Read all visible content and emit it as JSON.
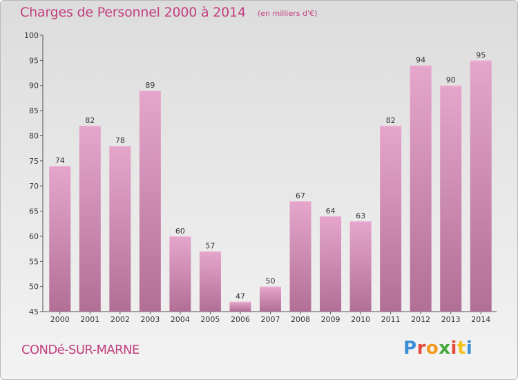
{
  "header": {
    "title": "Charges de Personnel 2000 à 2014",
    "subtitle": "(en milliers d'€)"
  },
  "footer": {
    "commune": "CONDé-SUR-MARNE",
    "brand": "Proxiti"
  },
  "colors": {
    "bar_top": "#e6a6cc",
    "bar_bottom": "#b26f96",
    "text_accent": "#c2407f"
  },
  "chart_data": {
    "type": "bar",
    "title": "Charges de Personnel 2000 à 2014",
    "subtitle": "(en milliers d'€)",
    "categories": [
      "2000",
      "2001",
      "2002",
      "2003",
      "2004",
      "2005",
      "2006",
      "2007",
      "2008",
      "2009",
      "2010",
      "2011",
      "2012",
      "2013",
      "2014"
    ],
    "values": [
      74,
      82,
      78,
      89,
      60,
      57,
      47,
      50,
      67,
      64,
      63,
      82,
      94,
      90,
      95
    ],
    "ylim": [
      45,
      100
    ],
    "yticks": [
      45,
      50,
      55,
      60,
      65,
      70,
      75,
      80,
      85,
      90,
      95,
      100
    ],
    "grid": false,
    "legend": "none"
  }
}
